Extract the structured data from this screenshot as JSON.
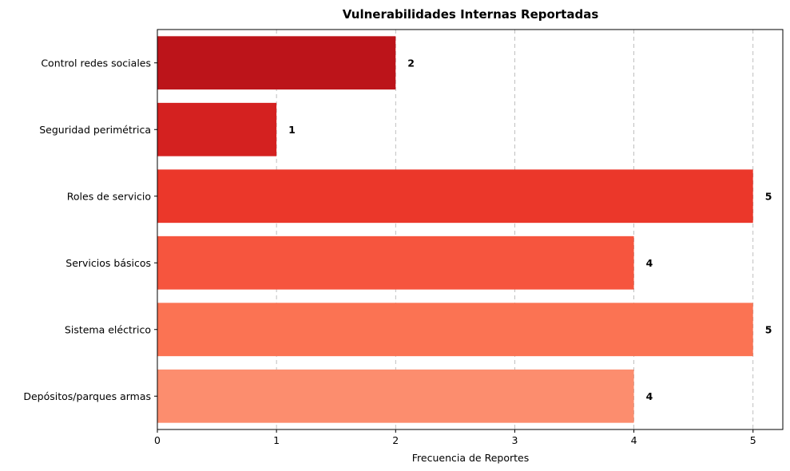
{
  "chart_data": {
    "type": "bar",
    "orientation": "horizontal",
    "title": "Vulnerabilidades Internas Reportadas",
    "xlabel": "Frecuencia de Reportes",
    "ylabel": "",
    "xlim": [
      0,
      5.25
    ],
    "x_ticks": [
      0,
      1,
      2,
      3,
      4,
      5
    ],
    "grid": "x-axis dashed",
    "categories": [
      "Depósitos/parques armas",
      "Sistema eléctrico",
      "Servicios básicos",
      "Roles de servicio",
      "Seguridad perimétrica",
      "Control redes sociales"
    ],
    "values": [
      4,
      5,
      4,
      5,
      1,
      2
    ],
    "colors": [
      "#fc8d6e",
      "#fb7353",
      "#f6553e",
      "#eb372a",
      "#d42120",
      "#bc141a"
    ]
  }
}
